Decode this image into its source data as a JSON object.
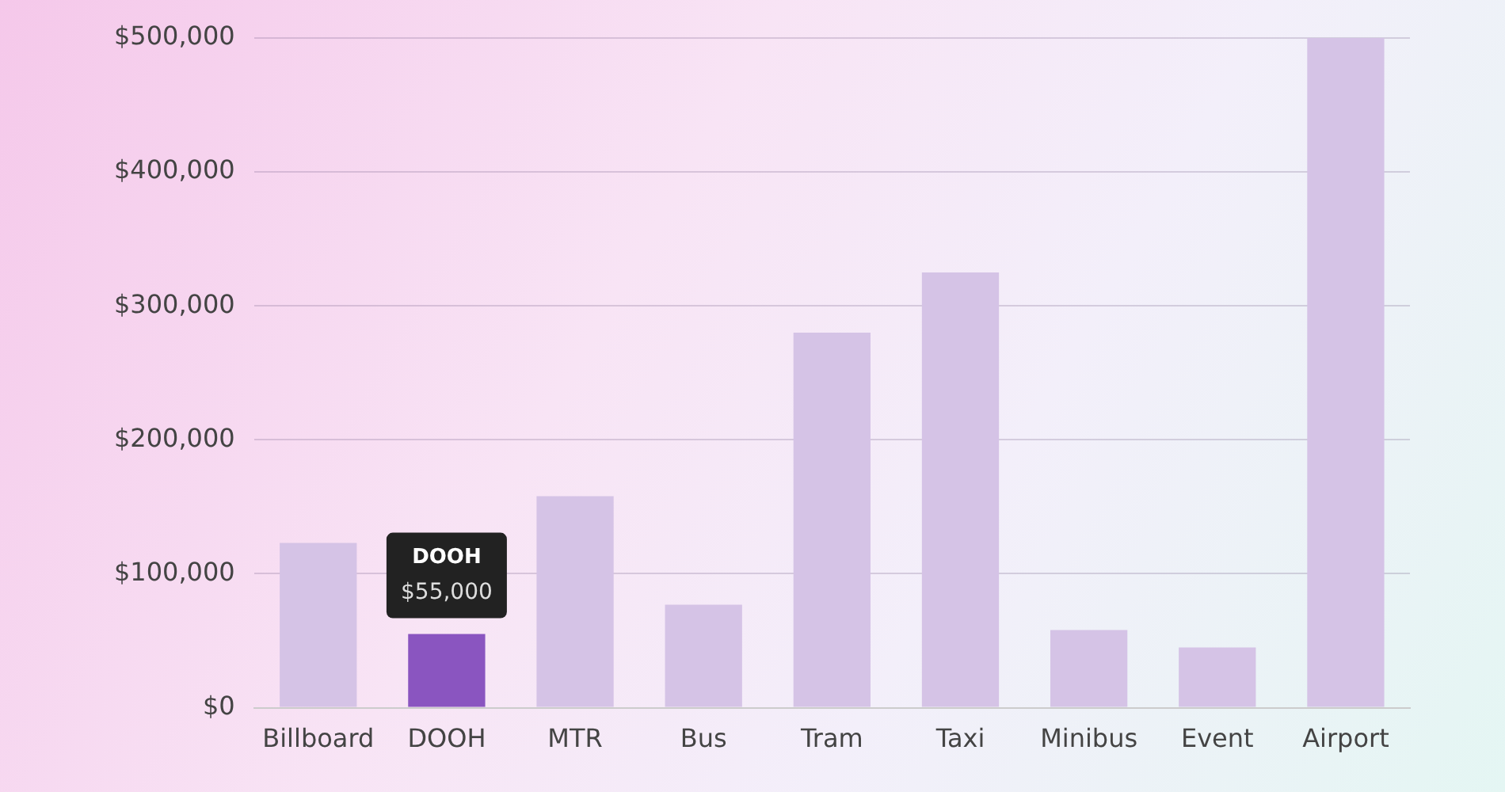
{
  "chart_data": {
    "type": "bar",
    "categories": [
      "Billboard",
      "DOOH",
      "MTR",
      "Bus",
      "Tram",
      "Taxi",
      "Minibus",
      "Event",
      "Airport"
    ],
    "values": [
      123000,
      55000,
      158000,
      77000,
      280000,
      325000,
      58000,
      45000,
      500000
    ],
    "colors": [
      "#d5c3e6",
      "#8a55c0",
      "#d5c3e6",
      "#d5c3e6",
      "#d5c3e6",
      "#d5c3e6",
      "#d5c3e6",
      "#d5c3e6",
      "#d5c3e6"
    ],
    "ylim": [
      0,
      500000
    ],
    "yticks": [
      {
        "value": 0,
        "label": "$0"
      },
      {
        "value": 100000,
        "label": "$100,000"
      },
      {
        "value": 200000,
        "label": "$200,000"
      },
      {
        "value": 300000,
        "label": "$300,000"
      },
      {
        "value": 400000,
        "label": "$400,000"
      },
      {
        "value": 500000,
        "label": "$500,000"
      }
    ],
    "grid": "y",
    "annotations": [
      "DOOH",
      {
        "text": "$55,000",
        "x": "DOOH",
        "y": 55000
      }
    ]
  }
}
